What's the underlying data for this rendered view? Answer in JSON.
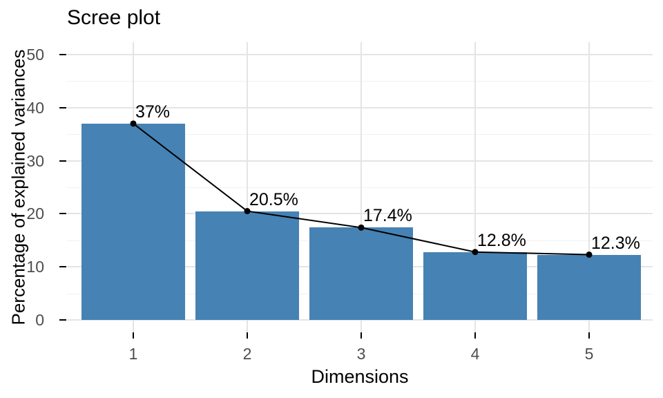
{
  "chart_data": {
    "type": "bar",
    "overlay": "line+points on bar tops",
    "title": "Scree plot",
    "xlabel": "Dimensions",
    "ylabel": "Percentage of explained variances",
    "categories": [
      "1",
      "2",
      "3",
      "4",
      "5"
    ],
    "values": [
      37,
      20.5,
      17.4,
      12.8,
      12.3
    ],
    "point_labels": [
      "37%",
      "20.5%",
      "17.4%",
      "12.8%",
      "12.3%"
    ],
    "y_ticks": [
      0,
      10,
      20,
      30,
      40,
      50
    ],
    "y_minor_ticks": [
      5,
      15,
      25,
      35,
      45
    ],
    "ylim": [
      0,
      52
    ],
    "grid": "horizontal major+minor, vertical major at category centers",
    "legend": "none",
    "colors": {
      "bar": "#4682B4",
      "line": "#000000",
      "point": "#000000",
      "grid_major": "#E4E4E4",
      "grid_minor": "#F1F1F1",
      "tick_mark": "#000000",
      "tick_label": "#4D4D4D",
      "title_text": "#000000",
      "background": "#FFFFFF"
    }
  }
}
